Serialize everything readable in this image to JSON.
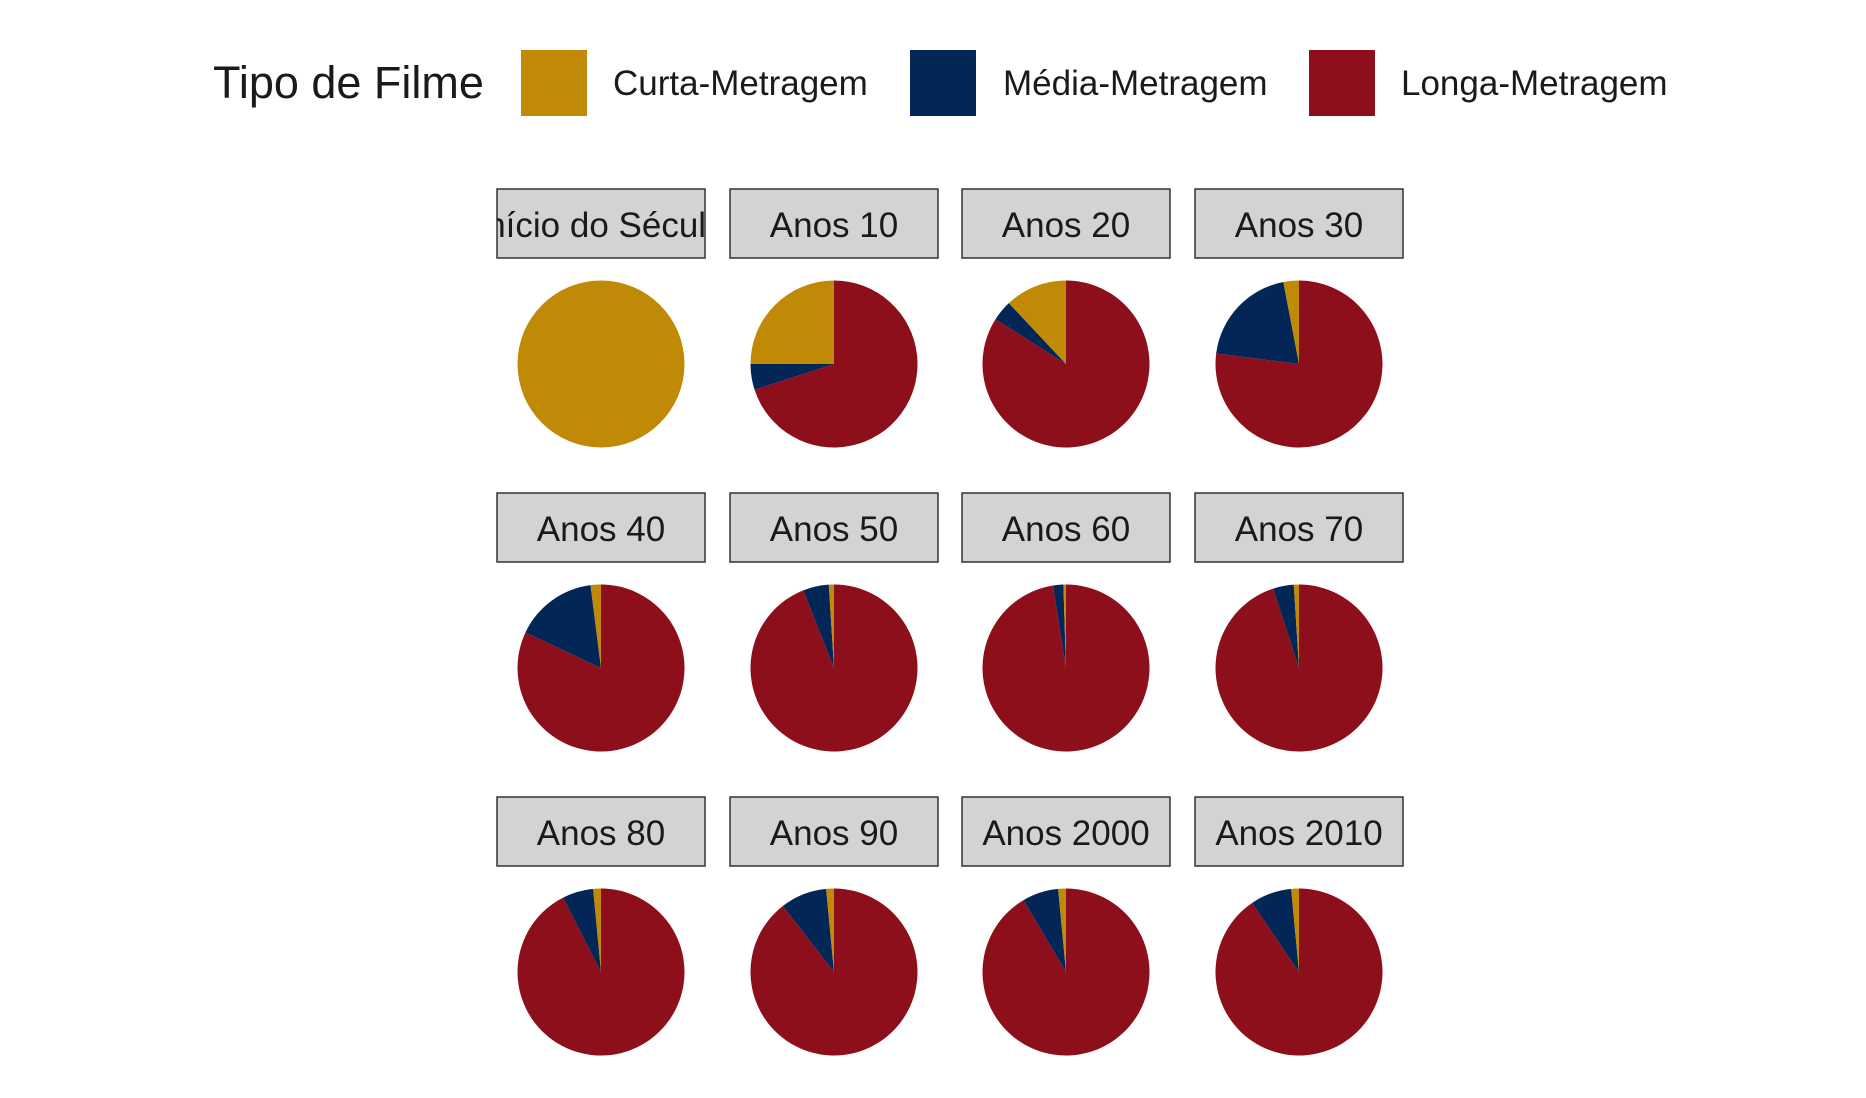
{
  "chart_data": {
    "type": "pie",
    "legend": {
      "title": "Tipo de Filme",
      "position": "top",
      "entries": [
        {
          "label": "Curta-Metragem",
          "color": "#C18A06"
        },
        {
          "label": "Média-Metragem",
          "color": "#022656"
        },
        {
          "label": "Longa-Metragem",
          "color": "#8C0F1B"
        }
      ]
    },
    "categories": [
      "Curta-Metragem",
      "Média-Metragem",
      "Longa-Metragem"
    ],
    "panels": [
      {
        "title": "Início do Século",
        "values": [
          1.0,
          0.0,
          0.0
        ]
      },
      {
        "title": "Anos 10",
        "values": [
          0.25,
          0.05,
          0.7
        ]
      },
      {
        "title": "Anos 20",
        "values": [
          0.12,
          0.04,
          0.84
        ]
      },
      {
        "title": "Anos 30",
        "values": [
          0.03,
          0.2,
          0.77
        ]
      },
      {
        "title": "Anos 40",
        "values": [
          0.02,
          0.16,
          0.82
        ]
      },
      {
        "title": "Anos 50",
        "values": [
          0.01,
          0.05,
          0.94
        ]
      },
      {
        "title": "Anos 60",
        "values": [
          0.005,
          0.02,
          0.975
        ]
      },
      {
        "title": "Anos 70",
        "values": [
          0.01,
          0.04,
          0.95
        ]
      },
      {
        "title": "Anos 80",
        "values": [
          0.015,
          0.06,
          0.925
        ]
      },
      {
        "title": "Anos 90",
        "values": [
          0.015,
          0.09,
          0.895
        ]
      },
      {
        "title": "Anos 2000",
        "values": [
          0.015,
          0.07,
          0.915
        ]
      },
      {
        "title": "Anos 2010",
        "values": [
          0.015,
          0.08,
          0.905
        ]
      }
    ]
  }
}
